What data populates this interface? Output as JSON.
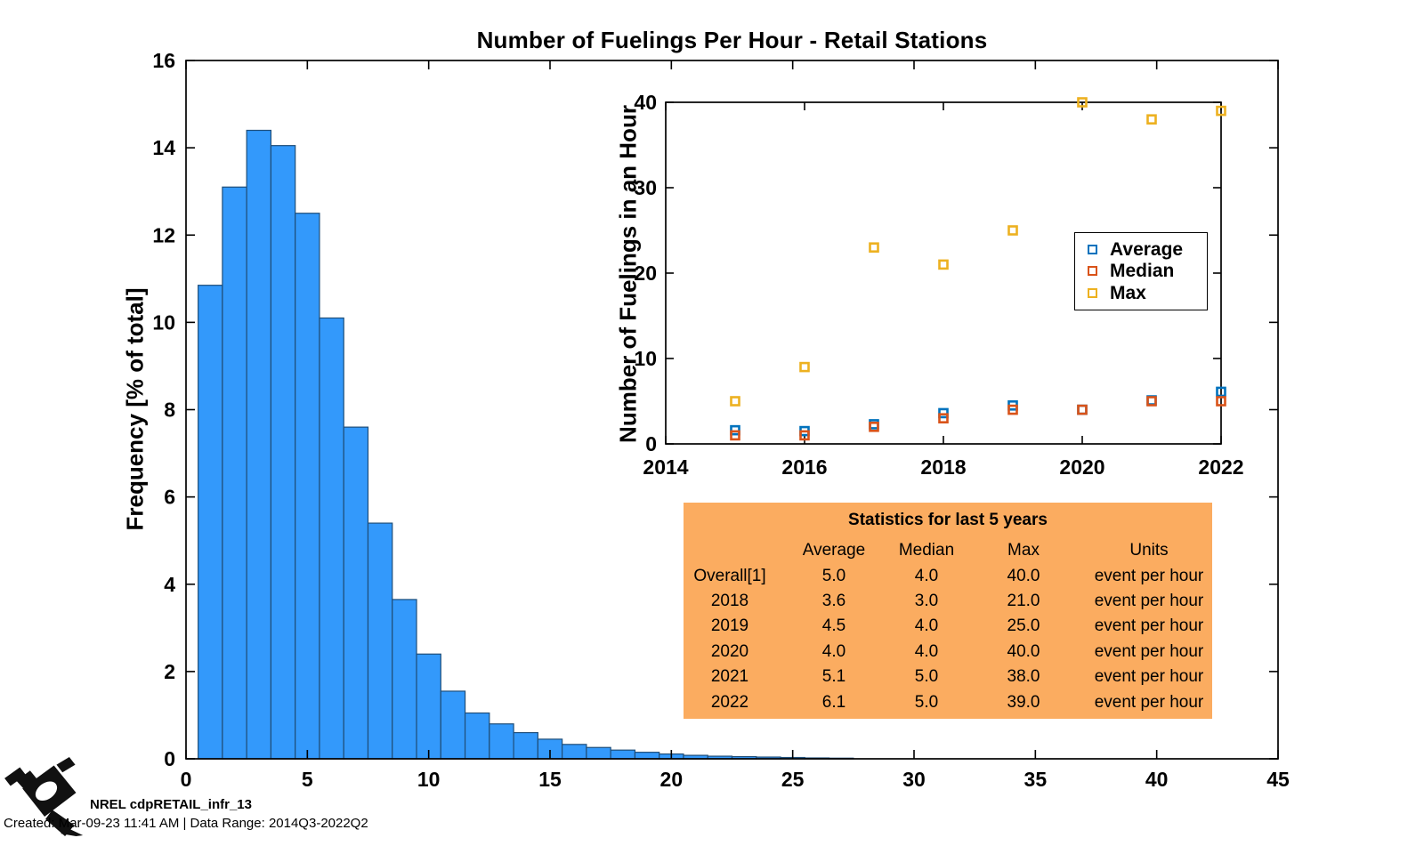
{
  "title": "Number of Fuelings Per Hour - Retail Stations",
  "colors": {
    "bar_fill": "#3399FB",
    "bar_edge": "#1F4E79",
    "average": "#0072BD",
    "median": "#D95319",
    "max": "#EDB120",
    "stats_panel_background": "#FBAC60",
    "axis": "#000000"
  },
  "chart_data": [
    {
      "type": "bar",
      "title": "Number of Fuelings Per Hour - Retail Stations",
      "xlabel": "",
      "ylabel": "Frequency [% of total]",
      "xlim": [
        0,
        45
      ],
      "ylim": [
        0,
        16
      ],
      "xticks": [
        0,
        5,
        10,
        15,
        20,
        25,
        30,
        35,
        40,
        45
      ],
      "yticks": [
        0,
        2,
        4,
        6,
        8,
        10,
        12,
        14,
        16
      ],
      "grid": false,
      "bin_width": 1,
      "categories": [
        1,
        2,
        3,
        4,
        5,
        6,
        7,
        8,
        9,
        10,
        11,
        12,
        13,
        14,
        15,
        16,
        17,
        18,
        19,
        20,
        21,
        22,
        23,
        24,
        25,
        26,
        27
      ],
      "values": [
        10.85,
        13.1,
        14.4,
        14.05,
        12.5,
        10.1,
        7.6,
        5.4,
        3.65,
        2.4,
        1.55,
        1.05,
        0.8,
        0.6,
        0.45,
        0.33,
        0.26,
        0.2,
        0.15,
        0.11,
        0.08,
        0.06,
        0.05,
        0.04,
        0.03,
        0.02,
        0.015
      ]
    },
    {
      "type": "scatter",
      "title": "",
      "xlabel": "",
      "ylabel": "Number of Fuelings in an Hour",
      "xlim": [
        2014,
        2022
      ],
      "ylim": [
        0,
        40
      ],
      "xticks": [
        2014,
        2016,
        2018,
        2020,
        2022
      ],
      "yticks": [
        0,
        10,
        20,
        30,
        40
      ],
      "grid": false,
      "marker": "hollow-square",
      "legend_position": "inside-right-center",
      "x": [
        2015,
        2016,
        2017,
        2018,
        2019,
        2020,
        2021,
        2022
      ],
      "series": [
        {
          "name": "Average",
          "color": "#0072BD",
          "values": [
            1.6,
            1.5,
            2.3,
            3.6,
            4.5,
            4.0,
            5.1,
            6.1
          ]
        },
        {
          "name": "Median",
          "color": "#D95319",
          "values": [
            1.0,
            1.0,
            2.0,
            3.0,
            4.0,
            4.0,
            5.0,
            5.0
          ]
        },
        {
          "name": "Max",
          "color": "#EDB120",
          "values": [
            5,
            9,
            23,
            21,
            25,
            40,
            38,
            39
          ]
        }
      ]
    }
  ],
  "legend": {
    "entries": [
      "Average",
      "Median",
      "Max"
    ]
  },
  "stats_table": {
    "title": "Statistics for last 5 years",
    "columns": [
      "",
      "Average",
      "Median",
      "Max",
      "Units"
    ],
    "rows": [
      [
        "Overall[1]",
        "5.0",
        "4.0",
        "40.0",
        "event per hour"
      ],
      [
        "2018",
        "3.6",
        "3.0",
        "21.0",
        "event per hour"
      ],
      [
        "2019",
        "4.5",
        "4.0",
        "25.0",
        "event per hour"
      ],
      [
        "2020",
        "4.0",
        "4.0",
        "40.0",
        "event per hour"
      ],
      [
        "2021",
        "5.1",
        "5.0",
        "38.0",
        "event per hour"
      ],
      [
        "2022",
        "6.1",
        "5.0",
        "39.0",
        "event per hour"
      ]
    ]
  },
  "footer": {
    "logo_label": "NREL cdpRETAIL_infr_13",
    "created_line": "Created: Mar-09-23 11:41 AM | Data Range: 2014Q3-2022Q2"
  },
  "icons": {
    "logo": "fuel-pump-nozzle-icon"
  }
}
